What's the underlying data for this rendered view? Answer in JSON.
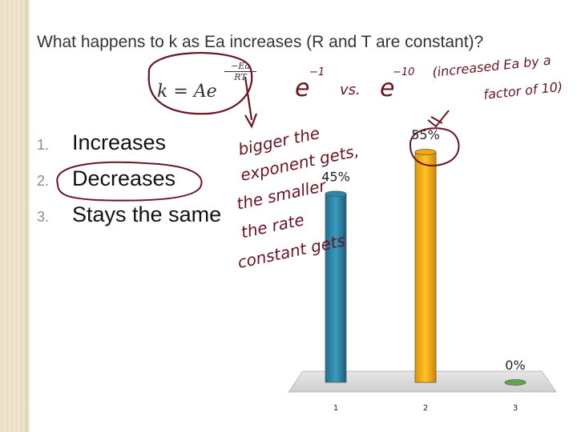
{
  "slide": {
    "question": "What happens to k as Ea increases (R and T are constant)?",
    "formula": {
      "lhs": "k",
      "prefix": "= Ae",
      "exp_numerator": "−Ea",
      "exp_denominator": "RT"
    },
    "answers": [
      {
        "number": "1.",
        "text": "Increases"
      },
      {
        "number": "2.",
        "text": "Decreases"
      },
      {
        "number": "3.",
        "text": "Stays the same"
      }
    ]
  },
  "chart_data": {
    "type": "bar",
    "categories": [
      "1",
      "2",
      "3"
    ],
    "values": [
      45,
      55,
      0
    ],
    "data_labels": [
      "45%",
      "55%",
      "0%"
    ],
    "ylim": [
      0,
      55
    ],
    "grid": false,
    "legend": "none",
    "colors": [
      "#2e86a6",
      "#f2a900",
      "#5aaa46"
    ]
  },
  "annotations": {
    "e_minus_1": {
      "base": "e",
      "exponent": "−1"
    },
    "vs": "vs.",
    "e_minus_10": {
      "base": "e",
      "exponent": "−10"
    },
    "note_top_lines": [
      "(increased Ea by a",
      "factor of 10)"
    ],
    "note_side_lines": [
      "bigger the",
      "exponent gets,",
      "the smaller",
      "the rate",
      "constant gets"
    ]
  },
  "colors": {
    "ink": "#6a1420",
    "question_text": "#333333",
    "answer_number": "#8c8c8c"
  }
}
